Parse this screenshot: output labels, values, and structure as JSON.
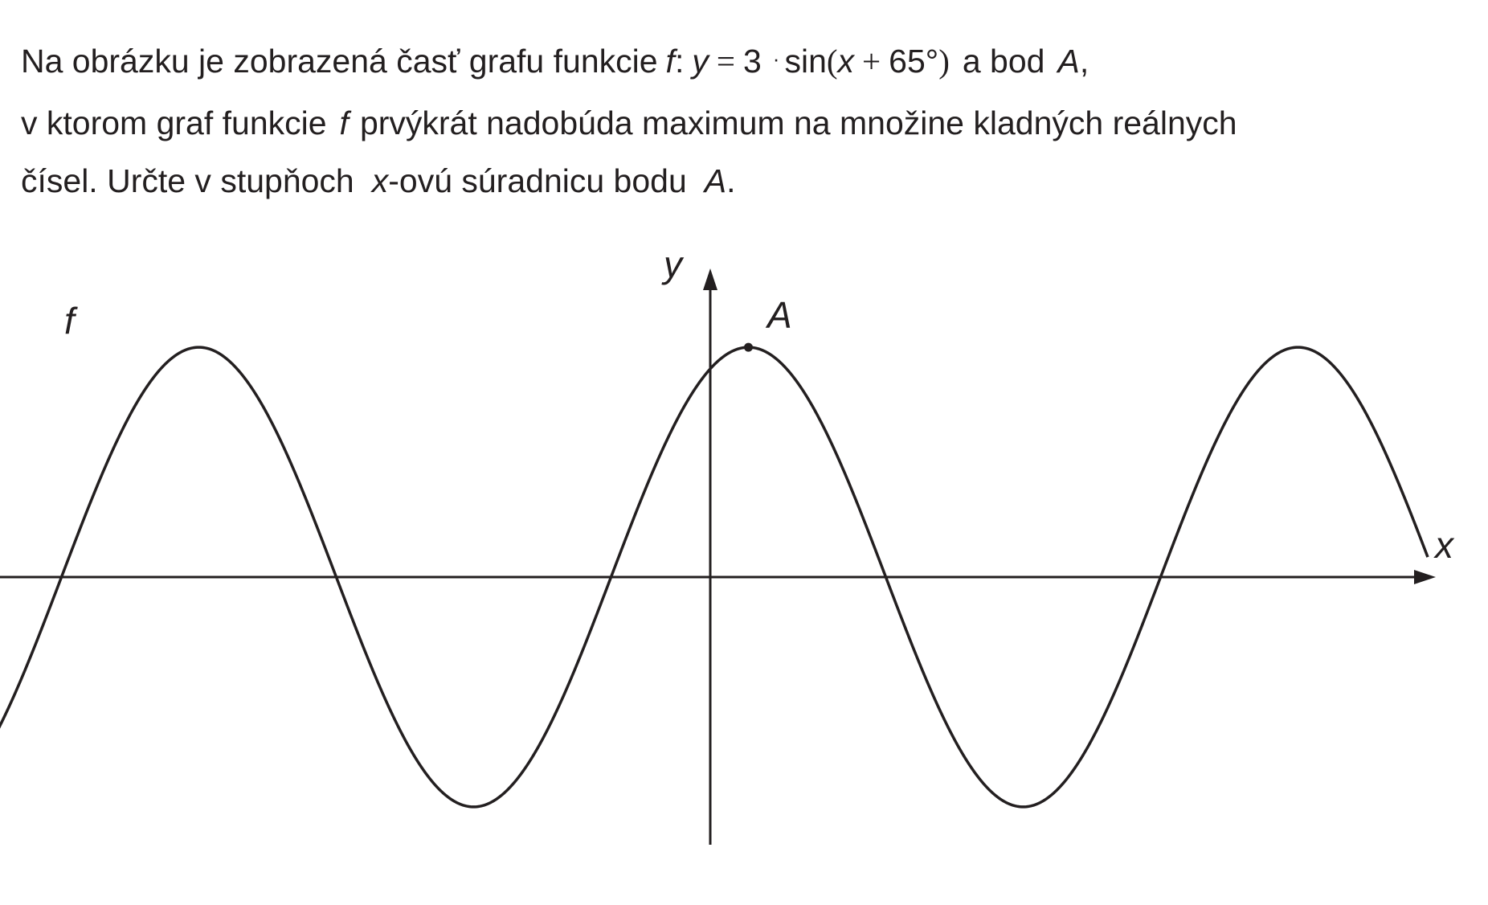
{
  "problem": {
    "line1": {
      "t1": "Na obrázku je zobrazená časť grafu funkcie",
      "f": "f",
      "colon": ":",
      "y": "y",
      "eq": "=",
      "amp": "3",
      "dot": "·",
      "sin": "sin",
      "lparen": "(",
      "x": "x",
      "plus": "+",
      "phase": "65°",
      "rparen": ")",
      "t2": "a bod",
      "A": "A",
      "comma": ","
    },
    "line2": {
      "t1": "v ktorom graf funkcie",
      "f": "f",
      "t2": "prvýkrát nadobúda maximum na množine kladných reálnych"
    },
    "line3": {
      "t1": "čísel. Určte v stupňoch",
      "x": "x",
      "t2": "-ovú súradnicu bodu",
      "A": "A",
      "t3": "."
    }
  },
  "graph": {
    "function": "y = 3·sin(x + 65°)",
    "amplitude": 3,
    "phase_deg": 65,
    "x_range_deg": [
      -470,
      470
    ],
    "point_A": {
      "x_deg": 25,
      "y": 3
    },
    "labels": {
      "y_axis": "y",
      "x_axis": "x",
      "curve": "f",
      "point": "A"
    },
    "colors": {
      "ink": "#231f20",
      "background": "#ffffff"
    }
  }
}
